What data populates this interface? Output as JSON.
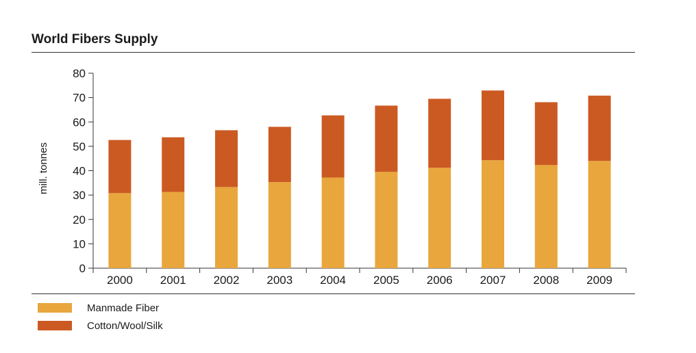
{
  "chart_data": {
    "type": "bar",
    "stacked": true,
    "title": "World Fibers Supply",
    "xlabel": "",
    "ylabel": "mill. tonnes",
    "ylim": [
      0,
      80
    ],
    "yticks": [
      0,
      10,
      20,
      30,
      40,
      50,
      60,
      70,
      80
    ],
    "categories": [
      "2000",
      "2001",
      "2002",
      "2003",
      "2004",
      "2005",
      "2006",
      "2007",
      "2008",
      "2009"
    ],
    "series": [
      {
        "name": "Manmade Fiber",
        "color": "#E8A63C",
        "values": [
          30.8,
          31.3,
          33.3,
          35.3,
          37.2,
          39.5,
          41.2,
          44.3,
          42.3,
          44.0
        ]
      },
      {
        "name": "Cotton/Wool/Silk",
        "color": "#CB5A22",
        "values": [
          21.8,
          22.4,
          23.3,
          22.7,
          25.5,
          27.2,
          28.3,
          28.6,
          25.8,
          26.8
        ]
      }
    ],
    "grid": false,
    "legend_position": "bottom-left"
  }
}
